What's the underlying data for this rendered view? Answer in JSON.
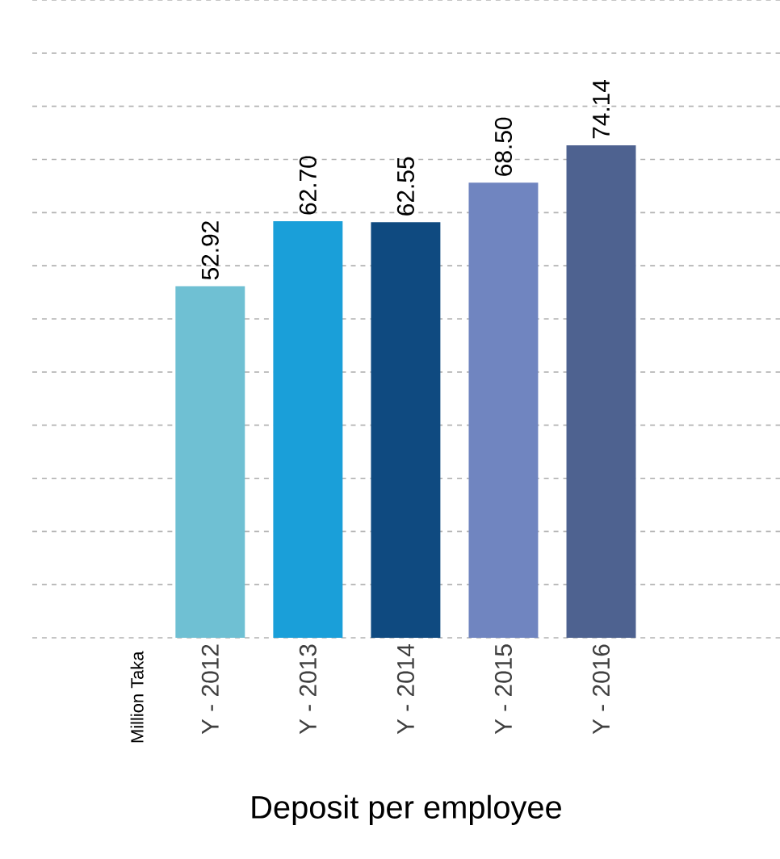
{
  "chart_data": {
    "type": "bar",
    "xlabel": "Deposit per employee",
    "ylabel": "Million Taka",
    "categories": [
      "Y - 2012",
      "Y - 2013",
      "Y - 2014",
      "Y - 2015",
      "Y - 2016"
    ],
    "values": [
      52.92,
      62.7,
      62.55,
      68.5,
      74.14
    ],
    "value_labels": [
      "52.92",
      "62.70",
      "62.55",
      "68.50",
      "74.14"
    ],
    "colors": [
      "#6fc0d3",
      "#1a9fd9",
      "#0f4a80",
      "#7085c0",
      "#4e6290"
    ],
    "yticks": [
      {
        "value": 0,
        "label": null
      },
      {
        "value": 8,
        "label": null
      },
      {
        "value": 16,
        "label": null
      },
      {
        "value": 24,
        "label": null
      },
      {
        "value": 32,
        "label": null
      },
      {
        "value": 40,
        "label": null
      },
      {
        "value": 48,
        "label": null
      },
      {
        "value": 56,
        "label": null
      },
      {
        "value": 64,
        "label": null
      },
      {
        "value": 72,
        "label": null
      },
      {
        "value": 80,
        "label": null
      },
      {
        "value": 88,
        "label": null
      },
      {
        "value": 96,
        "label": null
      }
    ],
    "grid": "y"
  }
}
